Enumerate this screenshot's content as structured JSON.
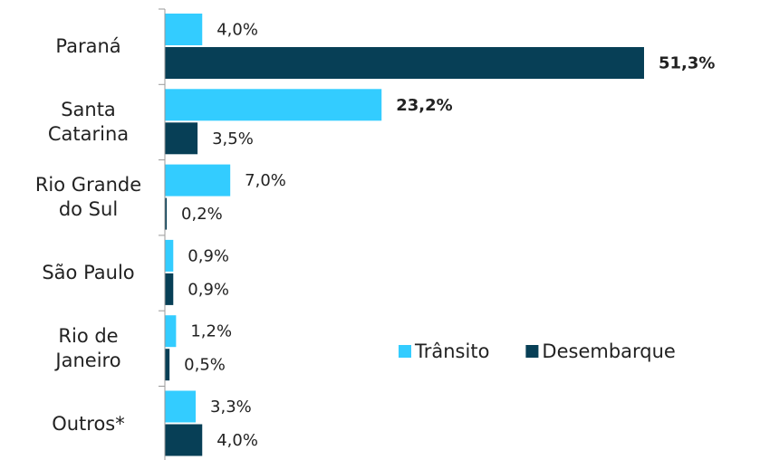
{
  "chart_data": {
    "type": "hbar",
    "categories": [
      "Paraná",
      "Santa Catarina",
      "Rio Grande do Sul",
      "São Paulo",
      "Rio de Janeiro",
      "Outros*"
    ],
    "series": [
      {
        "name": "Trânsito",
        "color": "#33ccff",
        "values": [
          4.0,
          23.2,
          7.0,
          0.9,
          1.2,
          3.3
        ],
        "value_labels": [
          "4,0%",
          "23,2%",
          "7,0%",
          "0,9%",
          "1,2%",
          "3,3%"
        ]
      },
      {
        "name": "Desembarque",
        "color": "#073f56",
        "values": [
          51.3,
          3.5,
          0.2,
          0.9,
          0.5,
          4.0
        ],
        "value_labels": [
          "51,3%",
          "3,5%",
          "0,2%",
          "0,9%",
          "0,5%",
          "4,0%"
        ]
      }
    ],
    "legend": "lower right"
  }
}
